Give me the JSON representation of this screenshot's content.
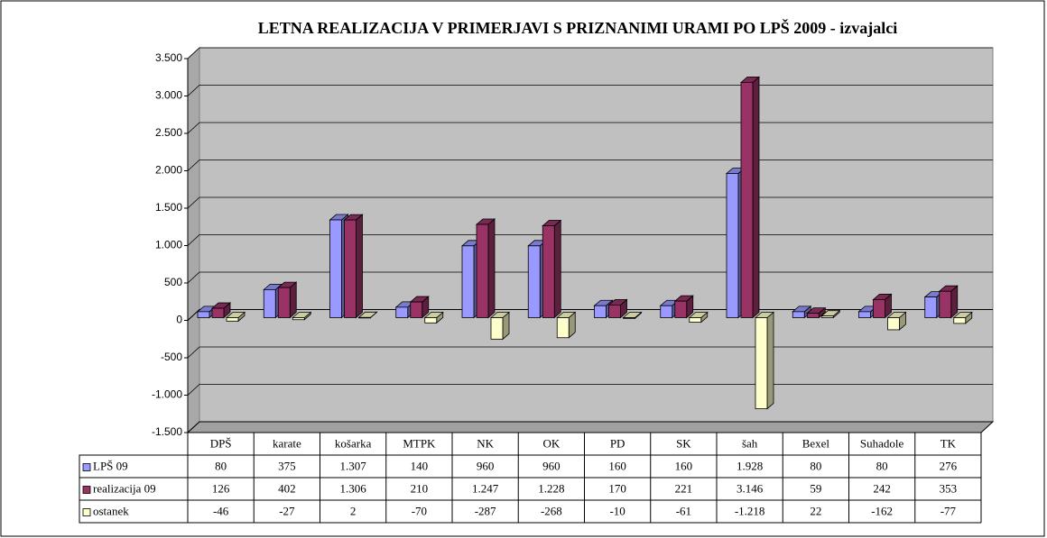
{
  "chart_data": {
    "type": "bar",
    "title": "LETNA REALIZACIJA V PRIMERJAVI S  PRIZNANIMI URAMI PO LPŠ  2009 - izvajalci",
    "categories": [
      "DPŠ",
      "karate",
      "košarka",
      "MTPK",
      "NK",
      "OK",
      "PD",
      "SK",
      "šah",
      "Bexel",
      "Suhadole",
      "TK"
    ],
    "series": [
      {
        "name": "LPŠ 09",
        "color": "#9999ff",
        "values": [
          80,
          375,
          1307,
          140,
          960,
          960,
          160,
          160,
          1928,
          80,
          80,
          276
        ],
        "value_labels": [
          "80",
          "375",
          "1.307",
          "140",
          "960",
          "960",
          "160",
          "160",
          "1.928",
          "80",
          "80",
          "276"
        ]
      },
      {
        "name": "realizacija 09",
        "color": "#993366",
        "values": [
          126,
          402,
          1306,
          210,
          1247,
          1228,
          170,
          221,
          3146,
          59,
          242,
          353
        ],
        "value_labels": [
          "126",
          "402",
          "1.306",
          "210",
          "1.247",
          "1.228",
          "170",
          "221",
          "3.146",
          "59",
          "242",
          "353"
        ]
      },
      {
        "name": "ostanek",
        "color": "#ffffcc",
        "values": [
          -46,
          -27,
          2,
          -70,
          -287,
          -268,
          -10,
          -61,
          -1218,
          22,
          -162,
          -77
        ],
        "value_labels": [
          "-46",
          "-27",
          "2",
          "-70",
          "-287",
          "-268",
          "-10",
          "-61",
          "-1.218",
          "22",
          "-162",
          "-77"
        ]
      }
    ],
    "ylim": [
      -1500,
      3500
    ],
    "yticks": [
      {
        "value": 3500,
        "label": "3.500"
      },
      {
        "value": 3000,
        "label": "3.000"
      },
      {
        "value": 2500,
        "label": "2.500"
      },
      {
        "value": 2000,
        "label": "2.000"
      },
      {
        "value": 1500,
        "label": "1.500"
      },
      {
        "value": 1000,
        "label": "1.000"
      },
      500,
      0,
      -500,
      {
        "value": -1000,
        "label": "-1.000"
      },
      {
        "value": -1500,
        "label": "-1.500"
      }
    ],
    "grid": true
  }
}
